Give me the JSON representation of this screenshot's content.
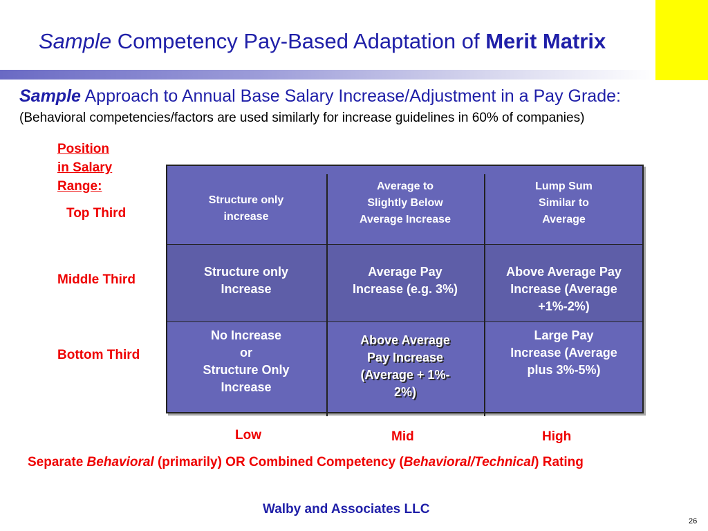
{
  "title": {
    "sample": "Sample",
    "main": " Competency Pay-Based Adaptation of ",
    "bold": "Merit Matrix"
  },
  "subtitle": {
    "sample": "Sample",
    "rest": " Approach to Annual Base Salary Increase/Adjustment in a Pay Grade:"
  },
  "note": "(Behavioral competencies/factors are used similarly for increase guidelines in 60% of companies)",
  "position_label": [
    "Position",
    "in Salary",
    "Range:"
  ],
  "rows": {
    "top": "Top Third",
    "middle": "Middle Third",
    "bottom": "Bottom Third"
  },
  "matrix": {
    "top": [
      [
        "Structure only",
        "increase"
      ],
      [
        "Average to",
        "Slightly Below",
        "Average Increase"
      ],
      [
        "Lump Sum",
        "Similar to",
        "Average"
      ]
    ],
    "middle": [
      [
        "Structure only",
        "Increase"
      ],
      [
        "Average Pay",
        "Increase (e.g. 3%)"
      ],
      [
        "Above Average Pay",
        "Increase (Average",
        "+1%-2%)"
      ]
    ],
    "bottom": [
      [
        "No Increase",
        "or",
        "Structure Only",
        "Increase"
      ],
      [
        "Above Average",
        "Pay Increase",
        "(Average + 1%-",
        "2%)"
      ],
      [
        "Large Pay",
        "Increase (Average",
        "plus 3%-5%)"
      ]
    ]
  },
  "columns": {
    "low": "Low",
    "mid": "Mid",
    "high": "High"
  },
  "rating_label": {
    "p1": "Separate ",
    "p2": "Behavioral",
    "p3": " (primarily) OR Combined Competency (",
    "p4": "Behavioral/Technical",
    "p5": ") Rating"
  },
  "company": "Walby and Associates LLC",
  "page_number": "26",
  "colors": {
    "title_blue": "#1f1fa8",
    "label_red": "#ee0000",
    "matrix_fill": "#6666b8",
    "accent_yellow": "#ffff00"
  }
}
